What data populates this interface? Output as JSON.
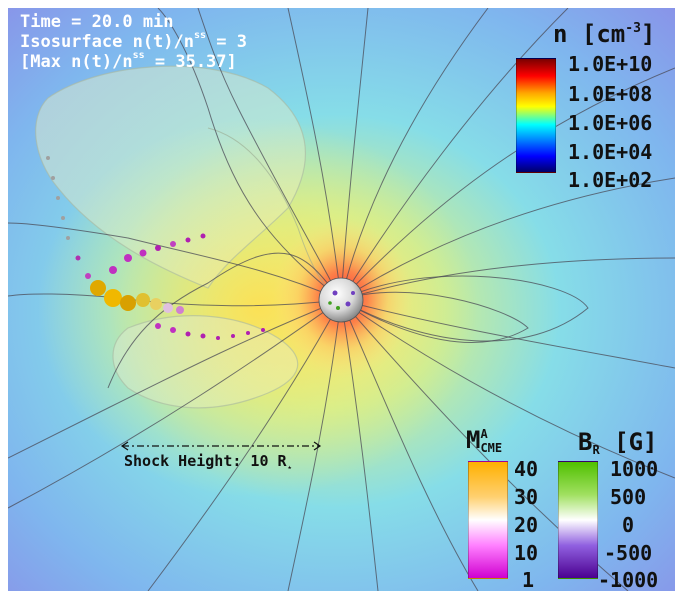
{
  "info": {
    "line1": "Time = 20.0 min",
    "line2_pre": "Isosurface n(t)/n",
    "line2_sup": "ss",
    "line2_post": " = 3",
    "line3_pre": "[Max n(t)/n",
    "line3_sup": "ss",
    "line3_post": " = 35.37]"
  },
  "density_colorbar": {
    "title_pre": "n [cm",
    "title_sup": "-3",
    "title_post": "]",
    "ticks": [
      "1.0E+10",
      "1.0E+08",
      "1.0E+06",
      "1.0E+04",
      "1.0E+02"
    ],
    "colors": [
      "#7a0000",
      "#ff0000",
      "#ffa500",
      "#ffff00",
      "#00ffff",
      "#0000ff",
      "#00006a"
    ]
  },
  "mach_colorbar": {
    "title_main": "M",
    "title_sup": "A",
    "title_sub": "CME",
    "ticks": [
      "40",
      "30",
      "20",
      "10",
      "1"
    ],
    "colors": [
      "#ffb000",
      "#ffffff",
      "#d000d0"
    ]
  },
  "br_colorbar": {
    "title_main": "B",
    "title_sub": "R",
    "title_post": " [G]",
    "ticks": [
      "1000",
      "500",
      "0",
      "-500",
      "-1000"
    ],
    "colors": [
      "#50c000",
      "#ffffff",
      "#4b0090"
    ]
  },
  "scale_bar": {
    "label_pre": "Shock Height: 10 R",
    "label_sub": "⋆"
  }
}
